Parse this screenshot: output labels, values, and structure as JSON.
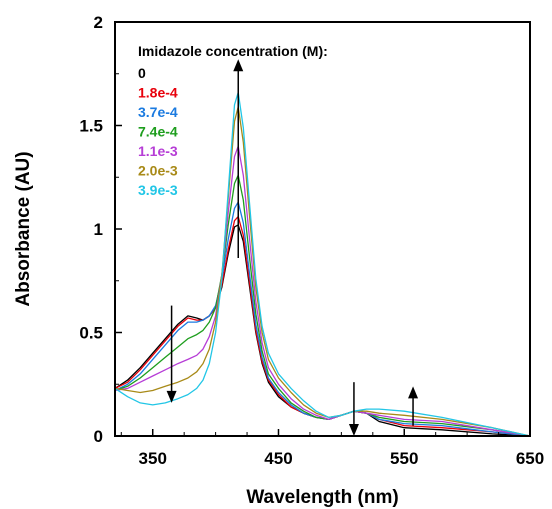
{
  "chart_data": {
    "type": "line",
    "xlabel": "Wavelength (nm)",
    "ylabel": "Absorbance (AU)",
    "xlim": [
      320,
      650
    ],
    "ylim": [
      0,
      2
    ],
    "x_ticks": [
      350,
      450,
      550,
      650
    ],
    "x_tick_labels": [
      "350",
      "450",
      "550",
      "650"
    ],
    "y_ticks": [
      0,
      0.5,
      1,
      1.5,
      2
    ],
    "y_tick_labels": [
      "0",
      "0.5",
      "1",
      "1.5",
      "2"
    ],
    "grid": false,
    "legend_title": "Imidazole concentration (M):",
    "legend_placement": "top-left",
    "series": [
      {
        "name": "0",
        "color": "#000000",
        "points": [
          [
            320,
            0.23
          ],
          [
            330,
            0.27
          ],
          [
            340,
            0.33
          ],
          [
            350,
            0.4
          ],
          [
            360,
            0.47
          ],
          [
            370,
            0.54
          ],
          [
            378,
            0.58
          ],
          [
            385,
            0.57
          ],
          [
            390,
            0.56
          ],
          [
            395,
            0.58
          ],
          [
            400,
            0.62
          ],
          [
            405,
            0.72
          ],
          [
            410,
            0.88
          ],
          [
            415,
            1.01
          ],
          [
            418,
            1.02
          ],
          [
            422,
            0.94
          ],
          [
            427,
            0.72
          ],
          [
            432,
            0.5
          ],
          [
            437,
            0.35
          ],
          [
            442,
            0.26
          ],
          [
            450,
            0.19
          ],
          [
            460,
            0.14
          ],
          [
            470,
            0.11
          ],
          [
            480,
            0.09
          ],
          [
            490,
            0.08
          ],
          [
            500,
            0.1
          ],
          [
            510,
            0.12
          ],
          [
            520,
            0.11
          ],
          [
            530,
            0.07
          ],
          [
            550,
            0.04
          ],
          [
            580,
            0.03
          ],
          [
            620,
            0.01
          ],
          [
            650,
            0.0
          ]
        ]
      },
      {
        "name": "1.8e-4",
        "color": "#e8000b",
        "points": [
          [
            320,
            0.23
          ],
          [
            330,
            0.26
          ],
          [
            340,
            0.32
          ],
          [
            350,
            0.39
          ],
          [
            360,
            0.46
          ],
          [
            370,
            0.53
          ],
          [
            378,
            0.57
          ],
          [
            385,
            0.56
          ],
          [
            390,
            0.56
          ],
          [
            395,
            0.58
          ],
          [
            400,
            0.62
          ],
          [
            405,
            0.73
          ],
          [
            410,
            0.9
          ],
          [
            415,
            1.04
          ],
          [
            418,
            1.06
          ],
          [
            422,
            0.97
          ],
          [
            427,
            0.74
          ],
          [
            432,
            0.51
          ],
          [
            437,
            0.36
          ],
          [
            442,
            0.27
          ],
          [
            450,
            0.2
          ],
          [
            460,
            0.14
          ],
          [
            470,
            0.11
          ],
          [
            480,
            0.09
          ],
          [
            490,
            0.08
          ],
          [
            500,
            0.1
          ],
          [
            510,
            0.12
          ],
          [
            520,
            0.11
          ],
          [
            530,
            0.08
          ],
          [
            550,
            0.05
          ],
          [
            580,
            0.04
          ],
          [
            620,
            0.02
          ],
          [
            650,
            0.0
          ]
        ]
      },
      {
        "name": "3.7e-4",
        "color": "#1a7ae0",
        "points": [
          [
            320,
            0.22
          ],
          [
            330,
            0.25
          ],
          [
            340,
            0.3
          ],
          [
            350,
            0.37
          ],
          [
            360,
            0.44
          ],
          [
            370,
            0.51
          ],
          [
            378,
            0.55
          ],
          [
            385,
            0.55
          ],
          [
            390,
            0.56
          ],
          [
            395,
            0.58
          ],
          [
            400,
            0.63
          ],
          [
            405,
            0.76
          ],
          [
            410,
            0.95
          ],
          [
            415,
            1.1
          ],
          [
            418,
            1.13
          ],
          [
            422,
            1.03
          ],
          [
            427,
            0.78
          ],
          [
            432,
            0.54
          ],
          [
            437,
            0.38
          ],
          [
            442,
            0.28
          ],
          [
            450,
            0.21
          ],
          [
            460,
            0.15
          ],
          [
            470,
            0.11
          ],
          [
            480,
            0.09
          ],
          [
            490,
            0.08
          ],
          [
            500,
            0.1
          ],
          [
            510,
            0.12
          ],
          [
            520,
            0.11
          ],
          [
            530,
            0.08
          ],
          [
            550,
            0.06
          ],
          [
            580,
            0.05
          ],
          [
            620,
            0.02
          ],
          [
            650,
            0.0
          ]
        ]
      },
      {
        "name": "7.4e-4",
        "color": "#1e9e1e",
        "points": [
          [
            320,
            0.22
          ],
          [
            330,
            0.24
          ],
          [
            340,
            0.28
          ],
          [
            350,
            0.33
          ],
          [
            360,
            0.38
          ],
          [
            370,
            0.43
          ],
          [
            378,
            0.47
          ],
          [
            385,
            0.49
          ],
          [
            390,
            0.51
          ],
          [
            395,
            0.55
          ],
          [
            400,
            0.62
          ],
          [
            405,
            0.78
          ],
          [
            410,
            1.02
          ],
          [
            415,
            1.22
          ],
          [
            418,
            1.26
          ],
          [
            422,
            1.14
          ],
          [
            427,
            0.86
          ],
          [
            432,
            0.59
          ],
          [
            437,
            0.41
          ],
          [
            442,
            0.3
          ],
          [
            450,
            0.23
          ],
          [
            460,
            0.16
          ],
          [
            470,
            0.12
          ],
          [
            480,
            0.09
          ],
          [
            490,
            0.08
          ],
          [
            500,
            0.1
          ],
          [
            510,
            0.12
          ],
          [
            520,
            0.11
          ],
          [
            530,
            0.09
          ],
          [
            550,
            0.07
          ],
          [
            580,
            0.06
          ],
          [
            620,
            0.03
          ],
          [
            650,
            0.0
          ]
        ]
      },
      {
        "name": "1.1e-3",
        "color": "#b63dd6",
        "points": [
          [
            320,
            0.22
          ],
          [
            330,
            0.23
          ],
          [
            340,
            0.26
          ],
          [
            350,
            0.29
          ],
          [
            360,
            0.32
          ],
          [
            370,
            0.35
          ],
          [
            378,
            0.37
          ],
          [
            385,
            0.39
          ],
          [
            390,
            0.42
          ],
          [
            395,
            0.48
          ],
          [
            400,
            0.58
          ],
          [
            405,
            0.78
          ],
          [
            410,
            1.08
          ],
          [
            415,
            1.35
          ],
          [
            418,
            1.4
          ],
          [
            422,
            1.26
          ],
          [
            427,
            0.95
          ],
          [
            432,
            0.65
          ],
          [
            437,
            0.45
          ],
          [
            442,
            0.33
          ],
          [
            450,
            0.25
          ],
          [
            460,
            0.18
          ],
          [
            470,
            0.13
          ],
          [
            480,
            0.1
          ],
          [
            490,
            0.08
          ],
          [
            500,
            0.1
          ],
          [
            510,
            0.12
          ],
          [
            520,
            0.11
          ],
          [
            530,
            0.1
          ],
          [
            550,
            0.08
          ],
          [
            580,
            0.07
          ],
          [
            620,
            0.03
          ],
          [
            650,
            0.0
          ]
        ]
      },
      {
        "name": "2.0e-3",
        "color": "#a88a18",
        "points": [
          [
            320,
            0.23
          ],
          [
            330,
            0.22
          ],
          [
            340,
            0.21
          ],
          [
            350,
            0.22
          ],
          [
            360,
            0.24
          ],
          [
            370,
            0.26
          ],
          [
            378,
            0.28
          ],
          [
            385,
            0.31
          ],
          [
            390,
            0.35
          ],
          [
            395,
            0.42
          ],
          [
            400,
            0.55
          ],
          [
            405,
            0.78
          ],
          [
            410,
            1.15
          ],
          [
            415,
            1.52
          ],
          [
            418,
            1.59
          ],
          [
            422,
            1.42
          ],
          [
            427,
            1.06
          ],
          [
            432,
            0.72
          ],
          [
            437,
            0.5
          ],
          [
            442,
            0.37
          ],
          [
            450,
            0.28
          ],
          [
            460,
            0.21
          ],
          [
            470,
            0.15
          ],
          [
            480,
            0.11
          ],
          [
            490,
            0.09
          ],
          [
            500,
            0.1
          ],
          [
            510,
            0.12
          ],
          [
            520,
            0.12
          ],
          [
            530,
            0.11
          ],
          [
            550,
            0.1
          ],
          [
            580,
            0.08
          ],
          [
            620,
            0.04
          ],
          [
            650,
            0.0
          ]
        ]
      },
      {
        "name": "3.9e-3",
        "color": "#22c6e6",
        "points": [
          [
            320,
            0.23
          ],
          [
            330,
            0.19
          ],
          [
            340,
            0.16
          ],
          [
            350,
            0.15
          ],
          [
            360,
            0.16
          ],
          [
            370,
            0.18
          ],
          [
            378,
            0.2
          ],
          [
            385,
            0.23
          ],
          [
            390,
            0.27
          ],
          [
            395,
            0.35
          ],
          [
            400,
            0.5
          ],
          [
            405,
            0.76
          ],
          [
            410,
            1.18
          ],
          [
            415,
            1.6
          ],
          [
            418,
            1.66
          ],
          [
            422,
            1.49
          ],
          [
            427,
            1.12
          ],
          [
            432,
            0.76
          ],
          [
            437,
            0.53
          ],
          [
            442,
            0.4
          ],
          [
            450,
            0.3
          ],
          [
            460,
            0.23
          ],
          [
            470,
            0.17
          ],
          [
            480,
            0.12
          ],
          [
            490,
            0.09
          ],
          [
            500,
            0.1
          ],
          [
            510,
            0.12
          ],
          [
            520,
            0.13
          ],
          [
            530,
            0.13
          ],
          [
            550,
            0.12
          ],
          [
            580,
            0.09
          ],
          [
            620,
            0.04
          ],
          [
            650,
            0.0
          ]
        ]
      }
    ],
    "annotations": [
      {
        "type": "arrow",
        "direction": "up",
        "x": 418,
        "y_from": 1.72,
        "y_to": 1.72,
        "from": [
          418,
          1.72
        ],
        "to": [
          418,
          1.57
        ]
      },
      {
        "type": "arrow",
        "direction": "down",
        "from": [
          365,
          0.63
        ],
        "to": [
          365,
          0.16
        ]
      },
      {
        "type": "arrow",
        "direction": "down",
        "from": [
          510,
          0.26
        ],
        "to": [
          510,
          0.0
        ]
      },
      {
        "type": "arrow",
        "direction": "up",
        "from": [
          557,
          0.05
        ],
        "to": [
          557,
          0.24
        ]
      }
    ]
  }
}
